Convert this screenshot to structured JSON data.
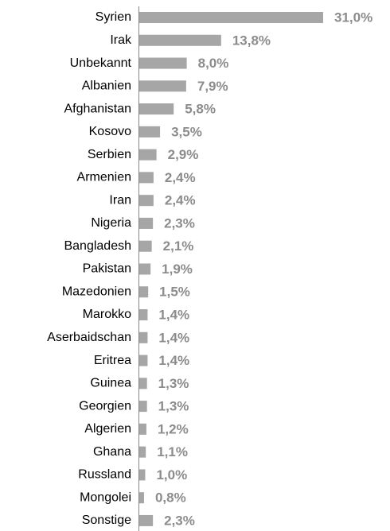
{
  "chart_data": {
    "type": "bar",
    "orientation": "horizontal",
    "categories": [
      "Syrien",
      "Irak",
      "Unbekannt",
      "Albanien",
      "Afghanistan",
      "Kosovo",
      "Serbien",
      "Armenien",
      "Iran",
      "Nigeria",
      "Bangladesh",
      "Pakistan",
      "Mazedonien",
      "Marokko",
      "Aserbaidschan",
      "Eritrea",
      "Guinea",
      "Georgien",
      "Algerien",
      "Ghana",
      "Russland",
      "Mongolei",
      "Sonstige"
    ],
    "values": [
      31.0,
      13.8,
      8.0,
      7.9,
      5.8,
      3.5,
      2.9,
      2.4,
      2.4,
      2.3,
      2.1,
      1.9,
      1.5,
      1.4,
      1.4,
      1.4,
      1.3,
      1.3,
      1.2,
      1.1,
      1.0,
      0.8,
      2.3
    ],
    "value_labels": [
      "31,0%",
      "13,8%",
      "8,0%",
      "7,9%",
      "5,8%",
      "3,5%",
      "2,9%",
      "2,4%",
      "2,4%",
      "2,3%",
      "2,1%",
      "1,9%",
      "1,5%",
      "1,4%",
      "1,4%",
      "1,4%",
      "1,3%",
      "1,3%",
      "1,2%",
      "1,1%",
      "1,0%",
      "0,8%",
      "2,3%"
    ],
    "color": "#a6a6a6"
  }
}
